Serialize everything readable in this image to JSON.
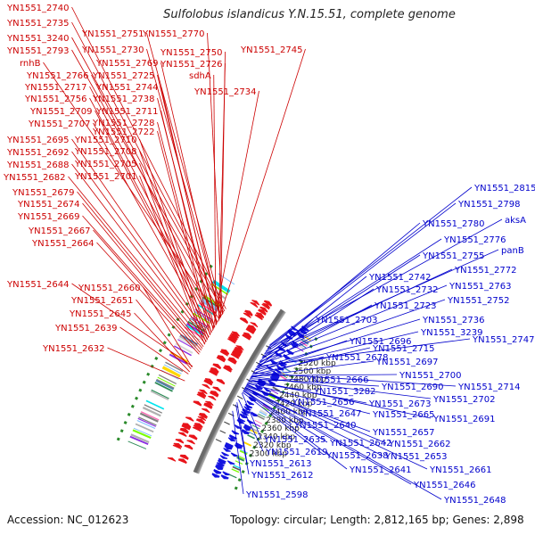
{
  "title": "Sulfolobus islandicus Y.N.15.51, complete genome",
  "footer": {
    "accession": "Accession: NC_012623",
    "summary": "Topology: circular; Length: 2,812,165 bp; Genes: 2,898"
  },
  "colors": {
    "forward": "#e8141a",
    "reverse": "#1414e0",
    "backbone": "#7d7d7d",
    "dotted_ring": "#2a8a2a",
    "label_forward": "#cc0000",
    "label_reverse": "#0000cc"
  },
  "ticks": [
    {
      "label": "2300 kbp",
      "pos": 2300000
    },
    {
      "label": "2320 kbp",
      "pos": 2320000
    },
    {
      "label": "2340 kbp",
      "pos": 2340000
    },
    {
      "label": "2360 kbp",
      "pos": 2360000
    },
    {
      "label": "2380 kbp",
      "pos": 2380000
    },
    {
      "label": "2400 kbp",
      "pos": 2400000
    },
    {
      "label": "2420 kbp",
      "pos": 2420000
    },
    {
      "label": "2440 kbp",
      "pos": 2440000
    },
    {
      "label": "2460 kbp",
      "pos": 2460000
    },
    {
      "label": "2480 kbp",
      "pos": 2480000
    },
    {
      "label": "2500 kbp",
      "pos": 2500000
    },
    {
      "label": "2520 kbp",
      "pos": 2520000
    }
  ],
  "left_labels": [
    {
      "text": "YN1551_2740",
      "pos": 2540000
    },
    {
      "text": "YN1551_2735",
      "pos": 2535000
    },
    {
      "text": "YN1551_3240",
      "pos": 2532000
    },
    {
      "text": "YN1551_2751",
      "pos": 2529000
    },
    {
      "text": "YN1551_2770",
      "pos": 2527000
    },
    {
      "text": "YN1551_2793",
      "pos": 2525000
    },
    {
      "text": "YN1551_2730",
      "pos": 2522000
    },
    {
      "text": "YN1551_2750",
      "pos": 2520000
    },
    {
      "text": "YN1551_2769",
      "pos": 2518000
    },
    {
      "text": "rnhB",
      "pos": 2516000
    },
    {
      "text": "YN1551_2726",
      "pos": 2513000
    },
    {
      "text": "YN1551_2745",
      "pos": 2511000
    },
    {
      "text": "YN1551_2766",
      "pos": 2509000
    },
    {
      "text": "YN1551_2725",
      "pos": 2506000
    },
    {
      "text": "YN1551_2744",
      "pos": 2504000
    },
    {
      "text": "sdhA",
      "pos": 2502000
    },
    {
      "text": "YN1551_2717",
      "pos": 2499000
    },
    {
      "text": "YN1551_2738",
      "pos": 2497000
    },
    {
      "text": "YN1551_2756",
      "pos": 2495000
    },
    {
      "text": "YN1551_2711",
      "pos": 2492000
    },
    {
      "text": "YN1551_2734",
      "pos": 2490000
    },
    {
      "text": "YN1551_2709",
      "pos": 2487000
    },
    {
      "text": "YN1551_2728",
      "pos": 2485000
    },
    {
      "text": "YN1551_2707",
      "pos": 2482000
    },
    {
      "text": "YN1551_2722",
      "pos": 2480000
    },
    {
      "text": "YN1551_2695",
      "pos": 2476000
    },
    {
      "text": "YN1551_2710",
      "pos": 2474000
    },
    {
      "text": "YN1551_2692",
      "pos": 2471000
    },
    {
      "text": "YN1551_2708",
      "pos": 2469000
    },
    {
      "text": "YN1551_2688",
      "pos": 2466000
    },
    {
      "text": "YN1551_2705",
      "pos": 2464000
    },
    {
      "text": "YN1551_2682",
      "pos": 2461000
    },
    {
      "text": "YN1551_2701",
      "pos": 2459000
    },
    {
      "text": "YN1551_2679",
      "pos": 2454000
    },
    {
      "text": "YN1551_2674",
      "pos": 2450000
    },
    {
      "text": "YN1551_2669",
      "pos": 2446000
    },
    {
      "text": "YN1551_2667",
      "pos": 2441000
    },
    {
      "text": "YN1551_2664",
      "pos": 2437000
    },
    {
      "text": "YN1551_2644",
      "pos": 2410000
    },
    {
      "text": "YN1551_2660",
      "pos": 2408000
    },
    {
      "text": "YN1551_2651",
      "pos": 2404000
    },
    {
      "text": "YN1551_2645",
      "pos": 2398000
    },
    {
      "text": "YN1551_2639",
      "pos": 2393000
    },
    {
      "text": "YN1551_2632",
      "pos": 2378000
    }
  ],
  "right_labels": [
    {
      "text": "YN1551_2815",
      "pos": 2525000
    },
    {
      "text": "YN1551_2798",
      "pos": 2520000
    },
    {
      "text": "aksA",
      "pos": 2516000
    },
    {
      "text": "YN1551_2780",
      "pos": 2510000
    },
    {
      "text": "YN1551_2776",
      "pos": 2506000
    },
    {
      "text": "panB",
      "pos": 2503000
    },
    {
      "text": "YN1551_2755",
      "pos": 2496000
    },
    {
      "text": "YN1551_2772",
      "pos": 2494000
    },
    {
      "text": "YN1551_2742",
      "pos": 2486000
    },
    {
      "text": "YN1551_2763",
      "pos": 2484000
    },
    {
      "text": "YN1551_2732",
      "pos": 2479000
    },
    {
      "text": "YN1551_2752",
      "pos": 2476000
    },
    {
      "text": "YN1551_2723",
      "pos": 2471000
    },
    {
      "text": "YN1551_2703",
      "pos": 2461000
    },
    {
      "text": "YN1551_2736",
      "pos": 2467000
    },
    {
      "text": "YN1551_3239",
      "pos": 2464000
    },
    {
      "text": "YN1551_2747",
      "pos": 2473000
    },
    {
      "text": "YN1551_2696",
      "pos": 2456000
    },
    {
      "text": "YN1551_2715",
      "pos": 2453000
    },
    {
      "text": "YN1551_2678",
      "pos": 2446000
    },
    {
      "text": "YN1551_2697",
      "pos": 2448000
    },
    {
      "text": "YN1551_2700",
      "pos": 2451000
    },
    {
      "text": "YN1551_2666",
      "pos": 2437000
    },
    {
      "text": "YN1551_2690",
      "pos": 2444000
    },
    {
      "text": "YN1551_2714",
      "pos": 2458000
    },
    {
      "text": "YN1551_3282",
      "pos": 2434000
    },
    {
      "text": "YN1551_2702",
      "pos": 2449000
    },
    {
      "text": "YN1551_2656",
      "pos": 2428000
    },
    {
      "text": "YN1551_2673",
      "pos": 2439000
    },
    {
      "text": "YN1551_2647",
      "pos": 2424000
    },
    {
      "text": "YN1551_2665",
      "pos": 2433000
    },
    {
      "text": "YN1551_2691",
      "pos": 2442000
    },
    {
      "text": "YN1551_2640",
      "pos": 2418000
    },
    {
      "text": "YN1551_2657",
      "pos": 2426000
    },
    {
      "text": "YN1551_2635",
      "pos": 2410000
    },
    {
      "text": "YN1551_2642",
      "pos": 2415000
    },
    {
      "text": "YN1551_2662",
      "pos": 2430000
    },
    {
      "text": "YN1551_2619",
      "pos": 2395000
    },
    {
      "text": "YN1551_2638",
      "pos": 2412000
    },
    {
      "text": "YN1551_2653",
      "pos": 2422000
    },
    {
      "text": "YN1551_2613",
      "pos": 2388000
    },
    {
      "text": "YN1551_2641",
      "pos": 2416000
    },
    {
      "text": "YN1551_2661",
      "pos": 2431000
    },
    {
      "text": "YN1551_2612",
      "pos": 2383000
    },
    {
      "text": "YN1551_2646",
      "pos": 2420000
    },
    {
      "text": "YN1551_2598",
      "pos": 2368000
    },
    {
      "text": "YN1551_2648",
      "pos": 2423000
    }
  ]
}
